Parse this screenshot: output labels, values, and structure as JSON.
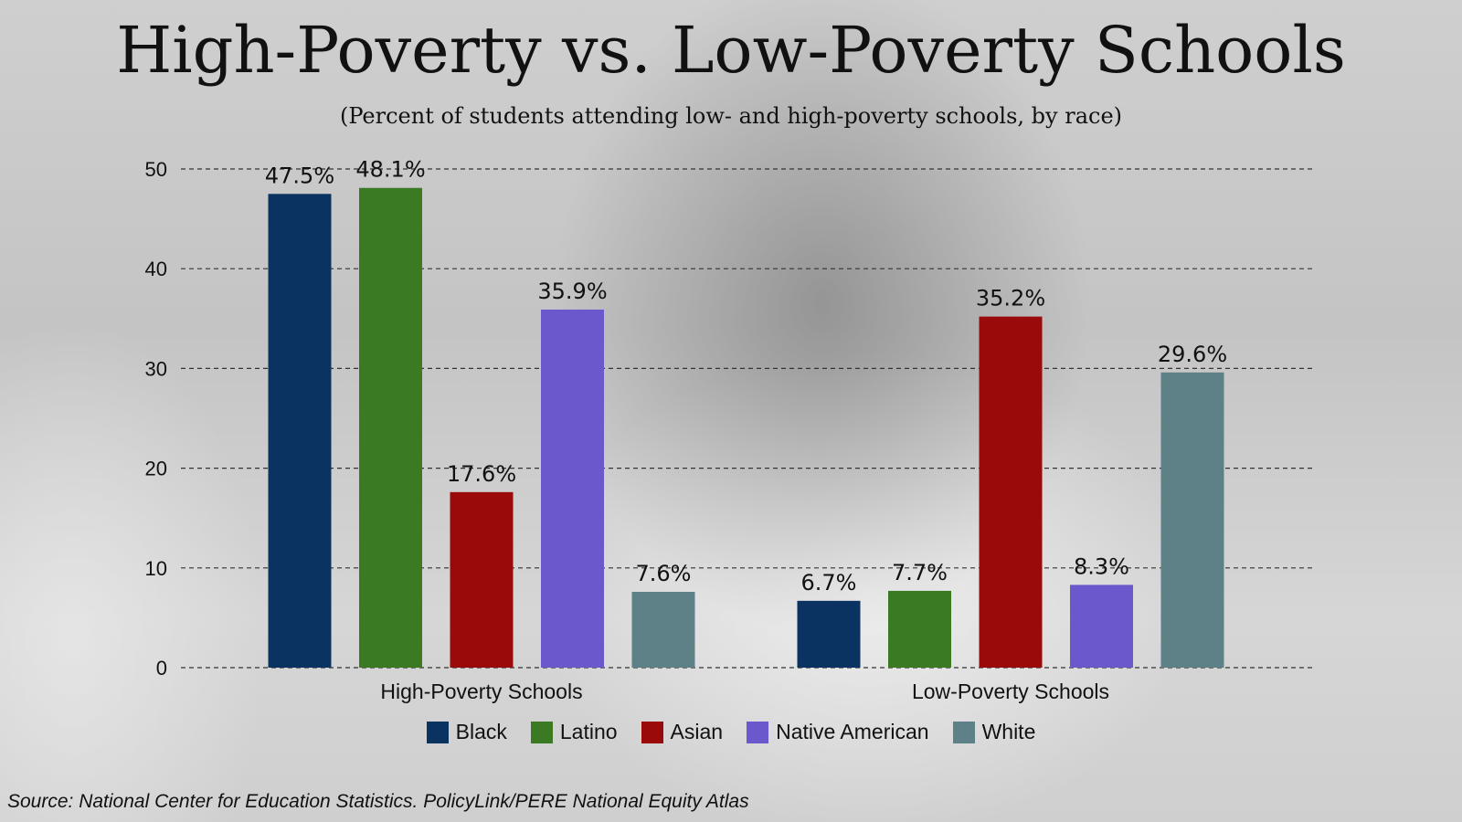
{
  "title": "High-Poverty vs. Low-Poverty Schools",
  "subtitle": "(Percent of students attending low- and high-poverty schools, by race)",
  "source": "Source: National Center for Education Statistics. PolicyLink/PERE National Equity Atlas",
  "chart_data": {
    "type": "bar",
    "title": "High-Poverty vs. Low-Poverty Schools",
    "subtitle": "(Percent of students attending low- and high-poverty schools, by race)",
    "categories": [
      "High-Poverty Schools",
      "Low-Poverty Schools"
    ],
    "series": [
      {
        "name": "Black",
        "values": [
          47.5,
          6.7
        ],
        "labels": [
          "47.5%",
          "6.7%"
        ],
        "color": "#0b3361"
      },
      {
        "name": "Latino",
        "values": [
          48.1,
          7.7
        ],
        "labels": [
          "48.1%",
          "7.7%"
        ],
        "color": "#3a7a22"
      },
      {
        "name": "Asian",
        "values": [
          17.6,
          35.2
        ],
        "labels": [
          "17.6%",
          "35.2%"
        ],
        "color": "#9b0a0a"
      },
      {
        "name": "Native American",
        "values": [
          35.9,
          8.3
        ],
        "labels": [
          "35.9%",
          "8.3%"
        ],
        "color": "#6a58cc"
      },
      {
        "name": "White",
        "values": [
          7.6,
          29.6
        ],
        "labels": [
          "7.6%",
          "29.6%"
        ],
        "color": "#5e8087"
      }
    ],
    "yticks": [
      0,
      10,
      20,
      30,
      40,
      50
    ],
    "ylim": [
      0,
      50
    ],
    "grid": true,
    "legend": "bottom"
  }
}
